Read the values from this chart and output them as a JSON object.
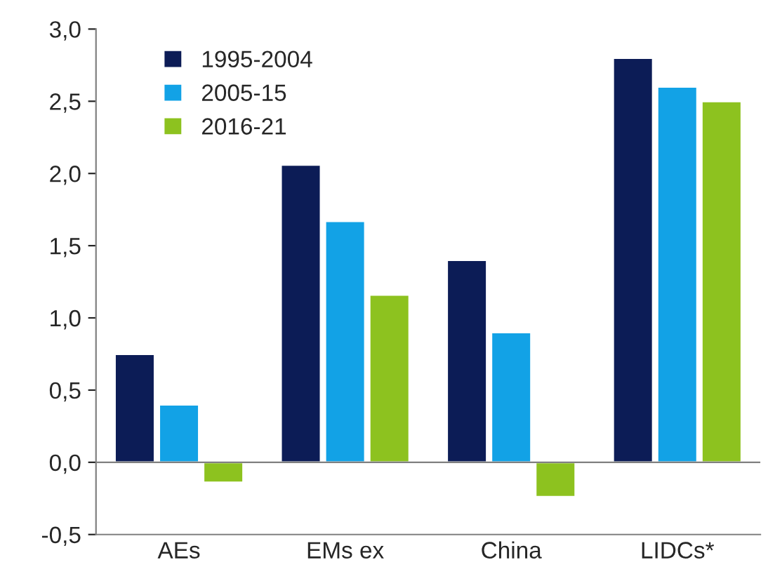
{
  "chart_data": {
    "type": "bar",
    "categories": [
      "AEs",
      "EMs ex",
      "China",
      "LIDCs*"
    ],
    "series": [
      {
        "name": "1995-2004",
        "color": "#0c1c56",
        "values": [
          0.75,
          2.06,
          1.4,
          2.8
        ]
      },
      {
        "name": "2005-15",
        "color": "#12a2e6",
        "values": [
          0.4,
          1.67,
          0.9,
          2.6
        ]
      },
      {
        "name": "2016-21",
        "color": "#8dc21f",
        "values": [
          -0.14,
          1.16,
          -0.24,
          2.5
        ]
      }
    ],
    "ylim": [
      -0.5,
      3.0
    ],
    "yticks": [
      {
        "value": -0.5,
        "label": "-0,5"
      },
      {
        "value": 0,
        "label": "0,0"
      },
      {
        "value": 0.5,
        "label": "0,5"
      },
      {
        "value": 1.0,
        "label": "1,0"
      },
      {
        "value": 1.5,
        "label": "1,5"
      },
      {
        "value": 2.0,
        "label": "2,0"
      },
      {
        "value": 2.5,
        "label": "2,5"
      },
      {
        "value": 3.0,
        "label": "3,0"
      }
    ],
    "ref_lines": [
      {
        "axis": "y",
        "value": 0,
        "color": "#808080"
      }
    ],
    "grid": false,
    "legend": "top left"
  }
}
